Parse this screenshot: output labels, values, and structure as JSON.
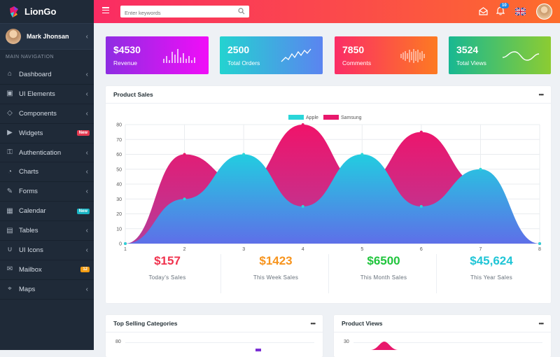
{
  "app": {
    "name": "LionGo"
  },
  "user": {
    "name": "Mark Jhonsan"
  },
  "sidebar": {
    "section_title": "MAIN NAVIGATION",
    "items": [
      {
        "label": "Dashboard",
        "icon": "home-icon"
      },
      {
        "label": "UI Elements",
        "icon": "briefcase-icon"
      },
      {
        "label": "Components",
        "icon": "diamond-icon"
      },
      {
        "label": "Widgets",
        "icon": "video-icon",
        "badge": "New",
        "badge_color": "#e53950"
      },
      {
        "label": "Authentication",
        "icon": "lock-icon"
      },
      {
        "label": "Charts",
        "icon": "pie-chart-icon"
      },
      {
        "label": "Forms",
        "icon": "edit-icon"
      },
      {
        "label": "Calendar",
        "icon": "calendar-icon",
        "badge": "New",
        "badge_color": "#19b4c4"
      },
      {
        "label": "Tables",
        "icon": "grid-icon"
      },
      {
        "label": "UI Icons",
        "icon": "magnet-icon"
      },
      {
        "label": "Mailbox",
        "icon": "mailbox-icon",
        "badge": "12",
        "badge_color": "#f39c12"
      },
      {
        "label": "Maps",
        "icon": "map-icon"
      }
    ]
  },
  "topbar": {
    "search_placeholder": "Enter keywords",
    "notification_count": "10"
  },
  "cards": [
    {
      "value": "$4530",
      "label": "Revenue",
      "gradient": [
        "#8e2de2",
        "#f10df8"
      ]
    },
    {
      "value": "2500",
      "label": "Total Orders",
      "gradient": [
        "#23d3d0",
        "#5b84f0"
      ]
    },
    {
      "value": "7850",
      "label": "Comments",
      "gradient": [
        "#fb2d66",
        "#fd7a22"
      ]
    },
    {
      "value": "3524",
      "label": "Total Views",
      "gradient": [
        "#18b892",
        "#8ccc32"
      ]
    }
  ],
  "product_sales": {
    "title": "Product Sales",
    "chart_data": {
      "type": "area",
      "x": [
        1,
        2,
        3,
        4,
        5,
        6,
        7,
        8
      ],
      "series": [
        {
          "name": "Apple",
          "values": [
            0,
            30,
            60,
            25,
            60,
            25,
            50,
            0
          ],
          "color": "#2ad6d9"
        },
        {
          "name": "Samsung",
          "values": [
            0,
            60,
            40,
            80,
            40,
            75,
            40,
            0
          ],
          "color": "#e8186c"
        }
      ],
      "ylim": [
        0,
        80
      ],
      "yticks": [
        0,
        10,
        20,
        30,
        40,
        50,
        60,
        70,
        80
      ],
      "legend": "top-center",
      "grid": true
    },
    "stats": [
      {
        "value": "$157",
        "label": "Today's Sales",
        "color": "#f0334e"
      },
      {
        "value": "$1423",
        "label": "This Week Sales",
        "color": "#f7941d"
      },
      {
        "value": "$6500",
        "label": "This Month Sales",
        "color": "#21c53d"
      },
      {
        "value": "$45,624",
        "label": "This Year Sales",
        "color": "#20c5d6"
      }
    ]
  },
  "top_selling": {
    "title": "Top Selling Categories",
    "y_top": "80"
  },
  "product_views": {
    "title": "Product Views",
    "y_top": "30"
  }
}
